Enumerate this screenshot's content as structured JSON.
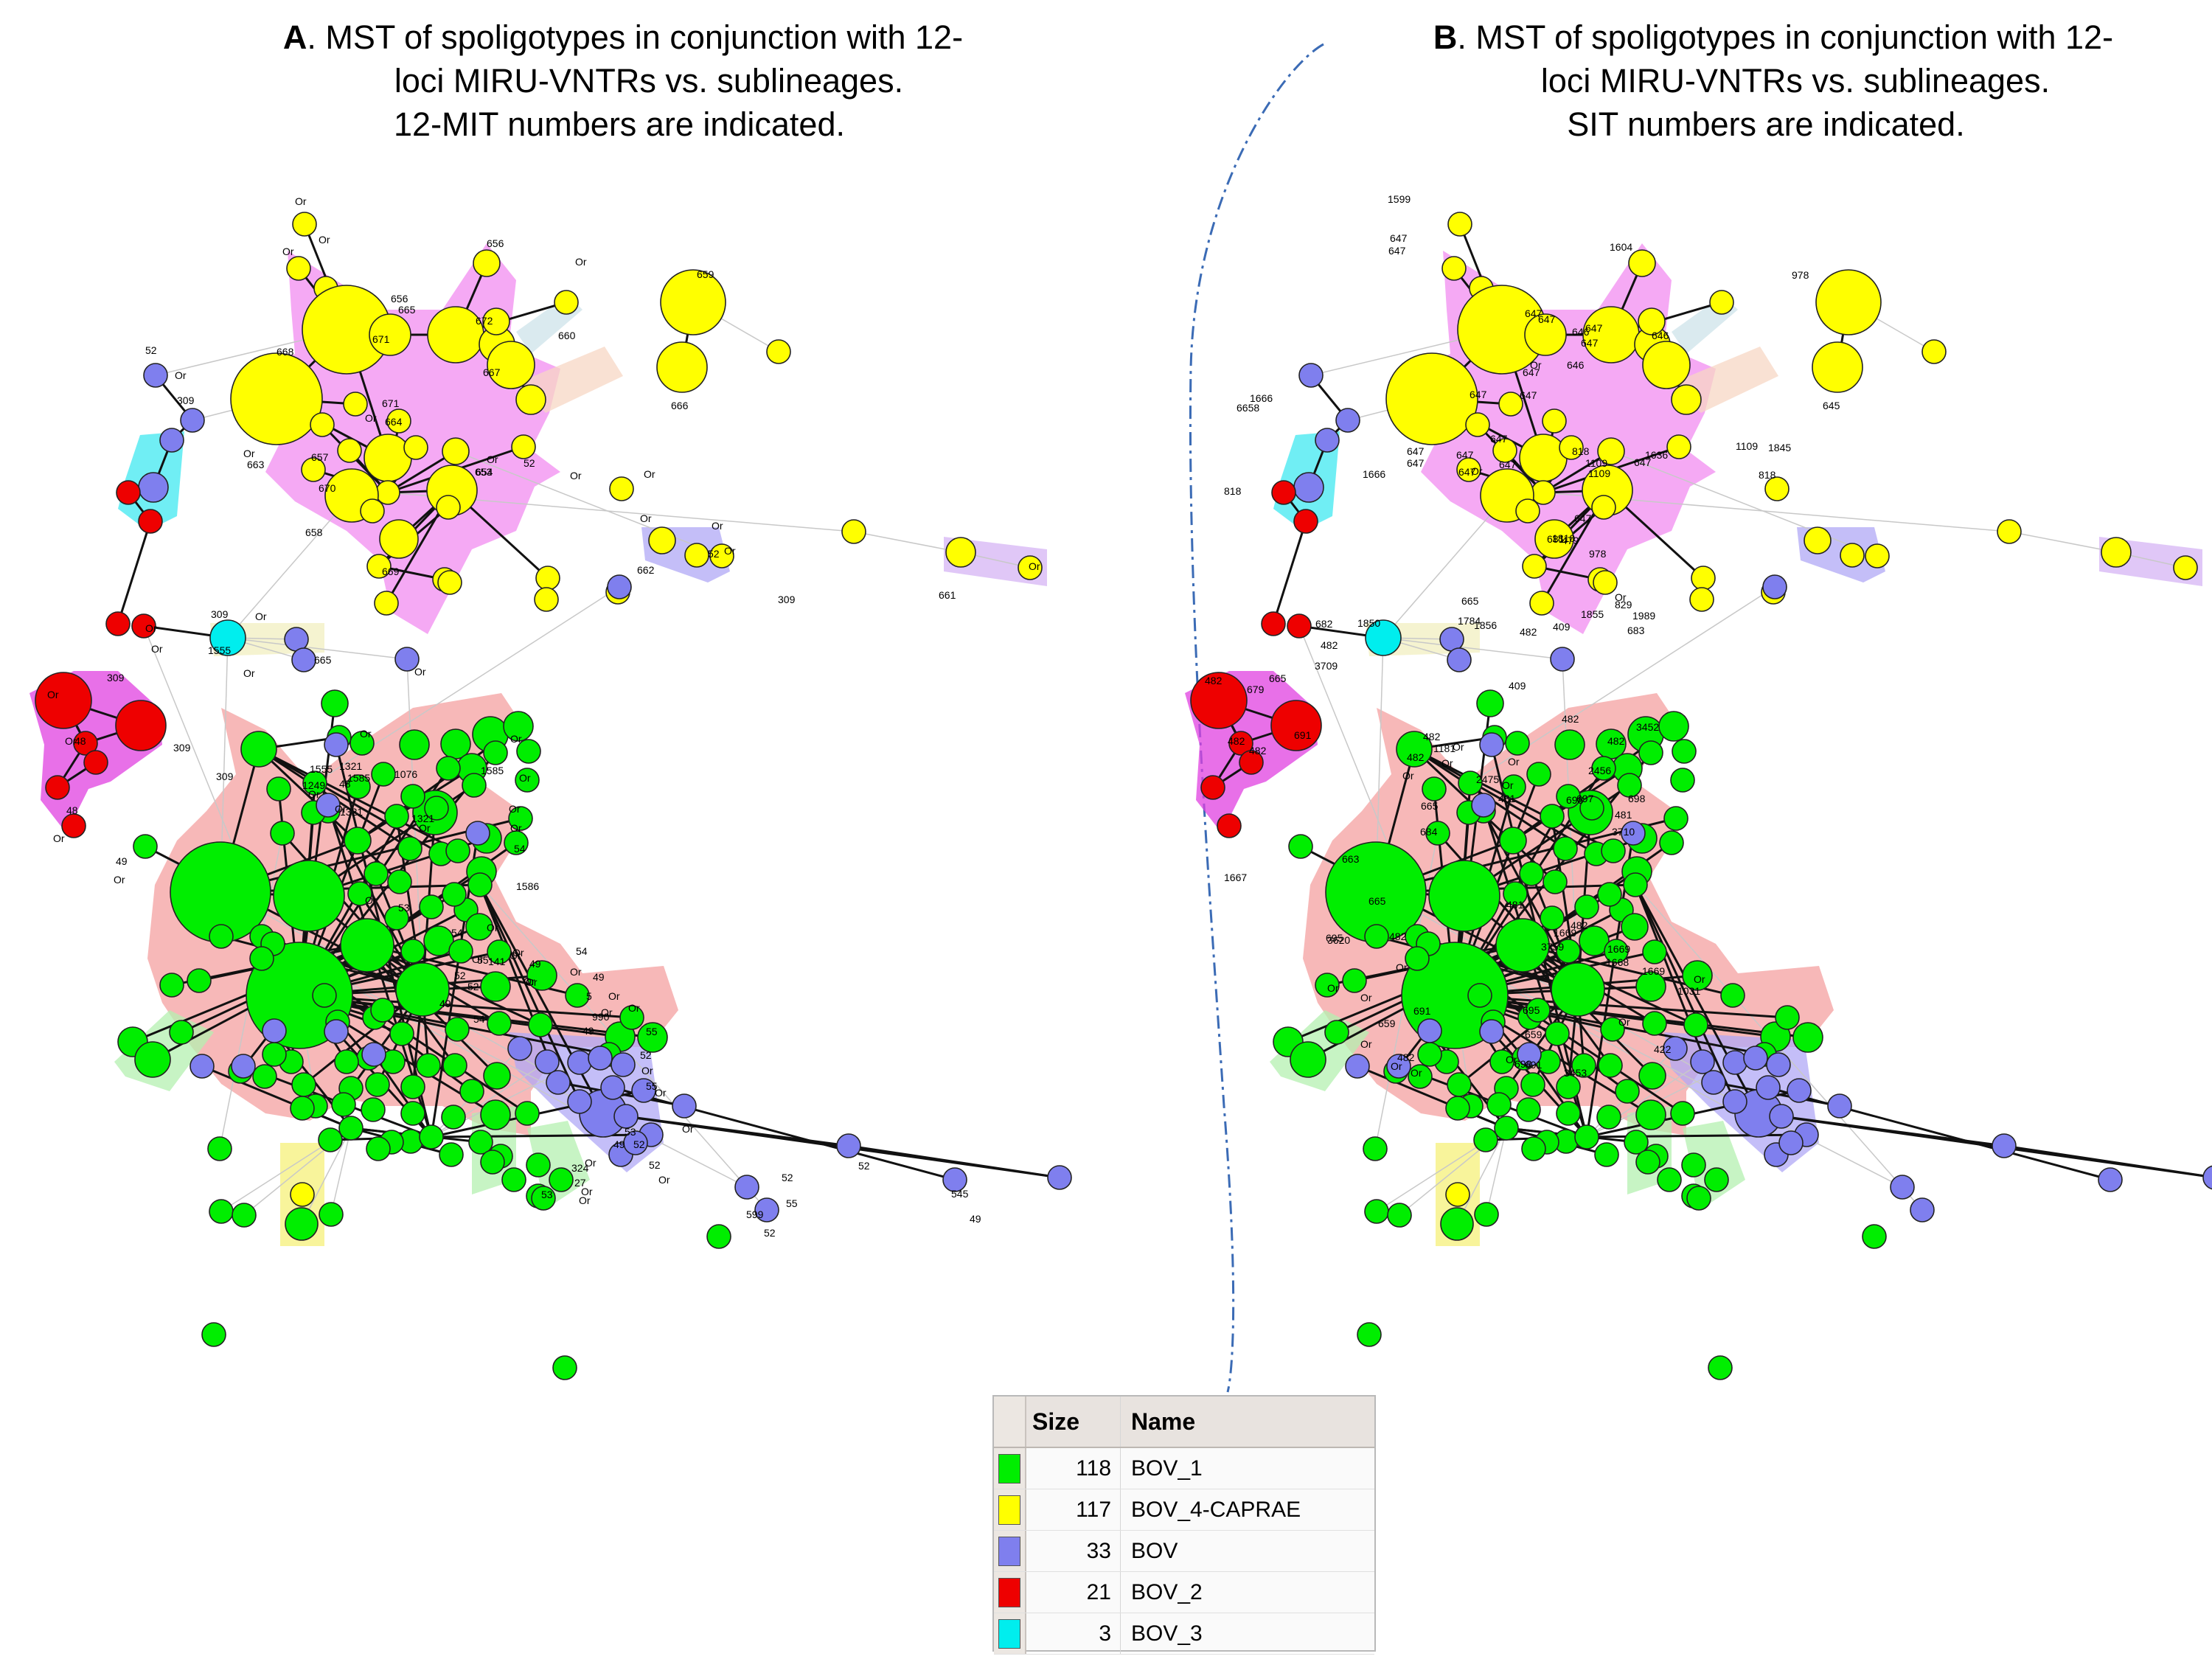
{
  "colors": {
    "green": "#00ee00",
    "yellow": "#ffff00",
    "blue": "#7f7fee",
    "red": "#ee0000",
    "cyan": "#00eeee",
    "halo_pink": "#f28cf0",
    "halo_salmon": "#f4a0a0",
    "halo_magenta": "#e040e0",
    "halo_lavender": "#b0a8f5",
    "halo_cyan": "#40e8f0",
    "halo_light_green": "#b4f0b0",
    "halo_light_yellow": "#f5f07a",
    "halo_cream": "#f2efc0",
    "halo_peach": "#f7d7c4",
    "halo_lightblue": "#cde3ea",
    "halo_violet": "#d6b4f4",
    "divider": "#3b6bb5"
  },
  "panel_a": {
    "letter": "A",
    "title_lines": [
      ". MST of spoligotypes in conjunction with 12-",
      "loci MIRU-VNTRs vs. sublineages.",
      "12-MIT numbers are indicated."
    ]
  },
  "panel_b": {
    "letter": "B",
    "title_lines": [
      ". MST of spoligotypes in conjunction with 12-",
      "loci MIRU-VNTRs vs. sublineages.",
      "SIT numbers are indicated."
    ]
  },
  "legend": {
    "header_size": "Size",
    "header_name": "Name",
    "rows": [
      {
        "size": "118",
        "name": "BOV_1",
        "color": "#00ee00"
      },
      {
        "size": "117",
        "name": "BOV_4-CAPRAE",
        "color": "#ffff00"
      },
      {
        "size": "33",
        "name": "BOV",
        "color": "#7f7fee"
      },
      {
        "size": "21",
        "name": "BOV_2",
        "color": "#ee0000"
      },
      {
        "size": "3",
        "name": "BOV_3",
        "color": "#00eeee"
      }
    ]
  },
  "labels_a": [
    "Or",
    "Or",
    "656",
    "Or",
    "672",
    "656",
    "660",
    "659",
    "668",
    "671",
    "665",
    "Or",
    "667",
    "52",
    "309",
    "Or",
    "671",
    "Or",
    "664",
    "666",
    "Or",
    "663",
    "657",
    "654",
    "Or",
    "670",
    "653",
    "52",
    "Or",
    "Or",
    "662",
    "52",
    "Or",
    "Or",
    "658",
    "669",
    "Or",
    "661",
    "Or",
    "309",
    "Or",
    "Or",
    "Or",
    "1555",
    "665",
    "309",
    "Or",
    "Or",
    "309",
    "Or",
    "48",
    "Or",
    "309",
    "48",
    "Or",
    "Or",
    "1321",
    "1555",
    "1585",
    "1076",
    "1585",
    "Or",
    "48",
    "1249",
    "Or",
    "Or",
    "1321",
    "1321",
    "309",
    "Or",
    "Or",
    "Or",
    "Or",
    "1586",
    "49",
    "Or",
    "54",
    "Or",
    "54",
    "141",
    "53",
    "Or",
    "49",
    "54",
    "49",
    "Or",
    "Or",
    "49",
    "Or",
    "Or",
    "Or",
    "55",
    "52",
    "52",
    "54",
    "990",
    "Or",
    "5",
    "Or",
    "Or",
    "49",
    "Or",
    "55",
    "52",
    "Or",
    "55",
    "Or",
    "Or",
    "52",
    "Or",
    "52",
    "49",
    "53",
    "Or",
    "53",
    "27",
    "Or",
    "Or",
    "324",
    "599",
    "52",
    "52",
    "55",
    "52",
    "545",
    "49"
  ],
  "labels_b": [
    "1599",
    "647",
    "1604",
    "647",
    "647",
    "647",
    "646",
    "646",
    "978",
    "647",
    "647",
    "647",
    "646",
    "Or",
    "6658",
    "647",
    "647",
    "645",
    "1666",
    "647",
    "647",
    "647",
    "647",
    "647",
    "647",
    "1636",
    "Or",
    "1666",
    "647",
    "1109",
    "1109",
    "818",
    "681",
    "647",
    "1109",
    "1845",
    "818",
    "818",
    "1810",
    "978",
    "479",
    "Or",
    "829",
    "1989",
    "1855",
    "1850",
    "665",
    "1784",
    "1856",
    "409",
    "482",
    "683",
    "482",
    "682",
    "3709",
    "482",
    "665",
    "409",
    "679",
    "482",
    "691",
    "3452",
    "482",
    "482",
    "1181",
    "Or",
    "Or",
    "Or",
    "2456",
    "482",
    "482",
    "482",
    "Or",
    "2475",
    "Or",
    "481",
    "698",
    "697",
    "665",
    "698",
    "481",
    "684",
    "3710",
    "663",
    "1667",
    "665",
    "695",
    "3620",
    "482",
    "481",
    "482",
    "3759",
    "1669",
    "1669",
    "1669",
    "1668",
    "Or",
    "Or",
    "Or",
    "Or",
    "695",
    "691",
    "659",
    "1031",
    "Or",
    "Or",
    "659",
    "422",
    "482",
    "691",
    "Or",
    "Or",
    "Or",
    "698",
    "3453"
  ]
}
